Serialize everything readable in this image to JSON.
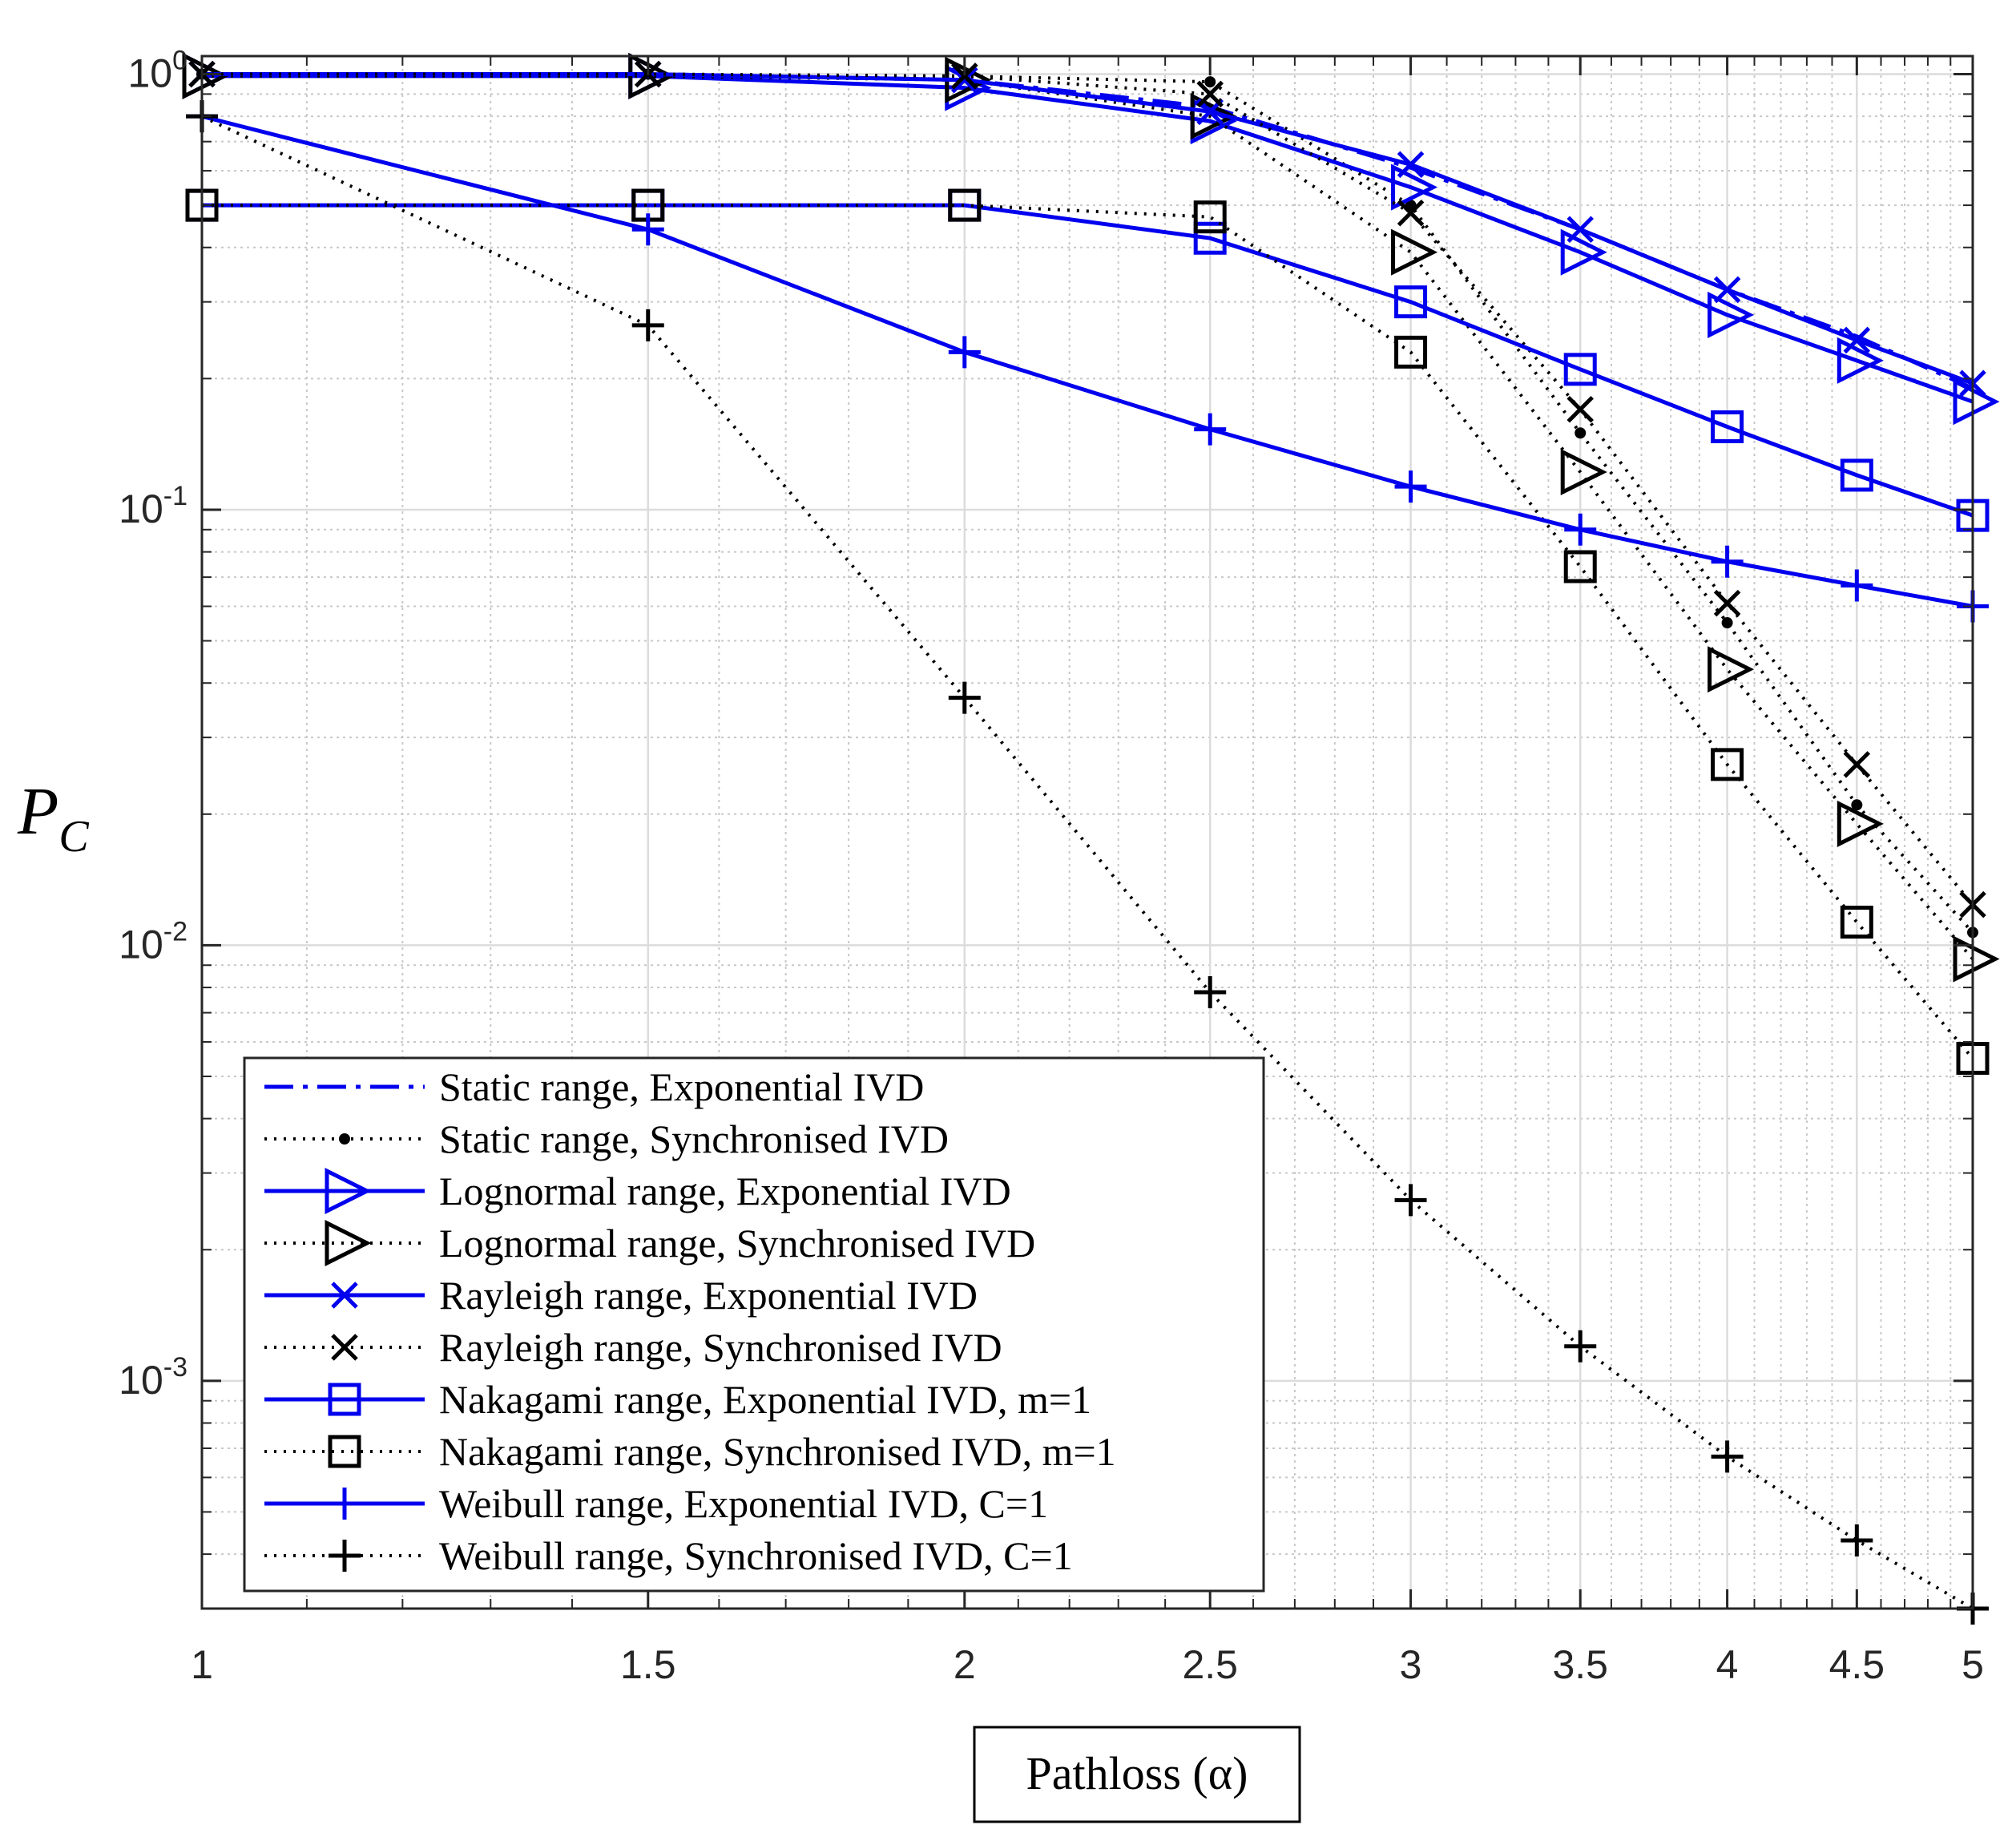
{
  "chart_data": {
    "type": "line",
    "xscale": "log",
    "yscale": "log",
    "xlim": [
      1,
      5
    ],
    "ylim": [
      0.0003,
      1.1
    ],
    "xlabel": "Pathloss (α)",
    "ylabel_symbol": "P",
    "ylabel_sub": "C",
    "grid": true,
    "legend_position": "bottom-left",
    "x_ticks": [
      {
        "value": 1,
        "label": "1"
      },
      {
        "value": 1.5,
        "label": "1.5"
      },
      {
        "value": 2,
        "label": "2"
      },
      {
        "value": 2.5,
        "label": "2.5"
      },
      {
        "value": 3,
        "label": "3"
      },
      {
        "value": 3.5,
        "label": "3.5"
      },
      {
        "value": 4,
        "label": "4"
      },
      {
        "value": 4.5,
        "label": "4.5"
      },
      {
        "value": 5,
        "label": "5"
      }
    ],
    "y_ticks": [
      {
        "value": 1,
        "base": "10",
        "exp": "0"
      },
      {
        "value": 0.1,
        "base": "10",
        "exp": "-1"
      },
      {
        "value": 0.01,
        "base": "10",
        "exp": "-2"
      },
      {
        "value": 0.001,
        "base": "10",
        "exp": "-3"
      }
    ],
    "x": [
      1,
      1.5,
      2,
      2.5,
      3,
      3.5,
      4,
      4.5,
      5
    ],
    "series": [
      {
        "name": "Static range, Exponential IVD",
        "color": "#0000ee",
        "style": "dashdot",
        "marker": "none",
        "values": [
          1.0,
          1.0,
          0.97,
          0.84,
          0.61,
          0.44,
          0.32,
          0.25,
          0.19
        ]
      },
      {
        "name": "Static range, Synchronised IVD",
        "color": "#000000",
        "style": "dotted",
        "marker": "dot",
        "values": [
          1.0,
          1.0,
          0.99,
          0.96,
          0.5,
          0.15,
          0.055,
          0.021,
          0.0107
        ]
      },
      {
        "name": "Lognormal range, Exponential IVD",
        "color": "#0000ee",
        "style": "solid",
        "marker": "triangle-right",
        "values": [
          0.99,
          0.99,
          0.93,
          0.78,
          0.55,
          0.39,
          0.28,
          0.22,
          0.177
        ]
      },
      {
        "name": "Lognormal range, Synchronised IVD",
        "color": "#000000",
        "style": "dotted",
        "marker": "triangle-right",
        "values": [
          0.99,
          0.99,
          0.97,
          0.8,
          0.39,
          0.122,
          0.043,
          0.019,
          0.0093
        ]
      },
      {
        "name": "Rayleigh range, Exponential IVD",
        "color": "#0000ee",
        "style": "solid",
        "marker": "x",
        "values": [
          1.0,
          1.0,
          0.97,
          0.82,
          0.62,
          0.44,
          0.32,
          0.245,
          0.195
        ]
      },
      {
        "name": "Rayleigh range, Synchronised IVD",
        "color": "#000000",
        "style": "dotted",
        "marker": "x",
        "values": [
          1.0,
          1.0,
          0.99,
          0.9,
          0.48,
          0.17,
          0.061,
          0.026,
          0.0124
        ]
      },
      {
        "name": "Nakagami range, Exponential IVD, m=1",
        "color": "#0000ee",
        "style": "solid",
        "marker": "square",
        "values": [
          0.5,
          0.5,
          0.5,
          0.42,
          0.3,
          0.21,
          0.155,
          0.12,
          0.097
        ]
      },
      {
        "name": "Nakagami range, Synchronised IVD, m=1",
        "color": "#000000",
        "style": "dotted",
        "marker": "square",
        "values": [
          0.5,
          0.5,
          0.5,
          0.47,
          0.23,
          0.074,
          0.026,
          0.0113,
          0.0055
        ]
      },
      {
        "name": "Weibull range, Exponential IVD, C=1",
        "color": "#0000ee",
        "style": "solid",
        "marker": "plus",
        "values": [
          0.8,
          0.44,
          0.23,
          0.153,
          0.113,
          0.09,
          0.076,
          0.067,
          0.06
        ]
      },
      {
        "name": "Weibull range, Synchronised IVD, C=1",
        "color": "#000000",
        "style": "dotted",
        "marker": "plus",
        "values": [
          0.8,
          0.265,
          0.037,
          0.0078,
          0.0026,
          0.0012,
          0.00067,
          0.00043,
          0.0003
        ]
      }
    ]
  }
}
